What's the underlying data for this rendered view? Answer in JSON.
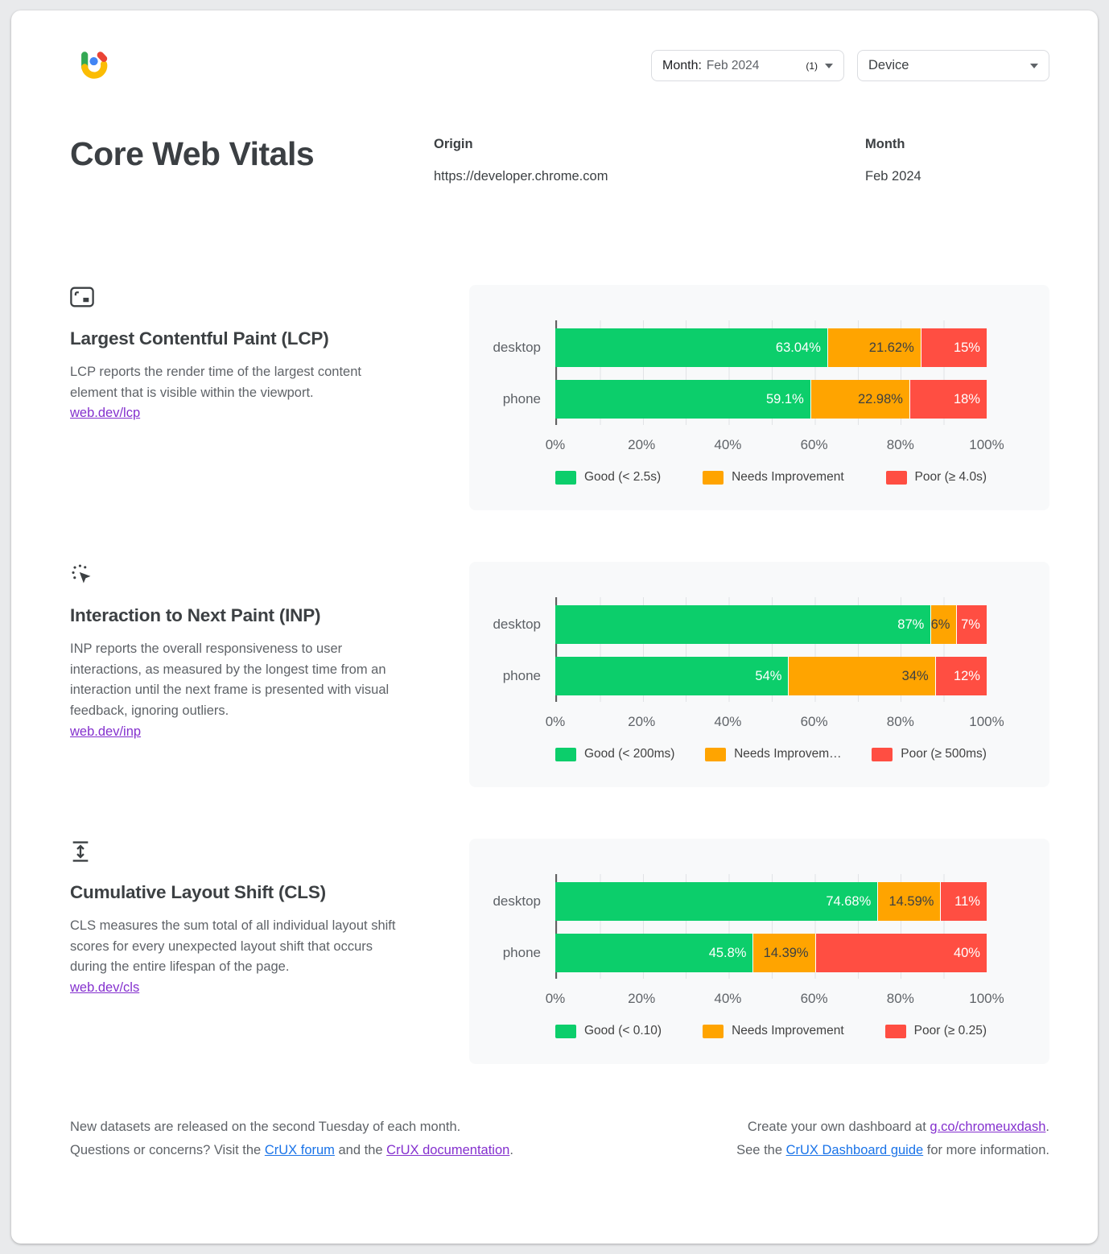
{
  "title": "Core Web Vitals",
  "filters": {
    "month": {
      "label": "Month:",
      "value": "Feb 2024",
      "count": "(1)"
    },
    "device": {
      "label": "Device"
    }
  },
  "origin": {
    "label": "Origin",
    "value": "https://developer.chrome.com"
  },
  "month": {
    "label": "Month",
    "value": "Feb 2024"
  },
  "colors": {
    "good": "#0cce6b",
    "needs_improvement": "#ffa400",
    "poor": "#ff4e42",
    "link_blue": "#1a73e8",
    "link_purple": "#8430ce"
  },
  "sections": [
    {
      "id": "lcp",
      "icon": "fit-screen-icon",
      "title": "Largest Contentful Paint (LCP)",
      "description": "LCP reports the render time of the largest content element that is visible within the viewport.",
      "link": "web.dev/lcp",
      "chart_data": {
        "type": "bar",
        "orientation": "horizontal",
        "stacked": true,
        "grid": true,
        "categories": [
          "desktop",
          "phone"
        ],
        "series": [
          {
            "name": "Good (< 2.5s)",
            "color": "#0cce6b",
            "label_color": "#ffffff",
            "values": [
              63.04,
              59.1
            ],
            "labels": [
              "63.04%",
              "59.1%"
            ]
          },
          {
            "name": "Needs Improvement",
            "color": "#ffa400",
            "label_color": "#3c4043",
            "values": [
              21.62,
              22.98
            ],
            "labels": [
              "21.62%",
              "22.98%"
            ]
          },
          {
            "name": "Poor (≥ 4.0s)",
            "color": "#ff4e42",
            "label_color": "#ffffff",
            "values": [
              15.34,
              17.92
            ],
            "labels": [
              "15%",
              "18%"
            ]
          }
        ],
        "x_ticks": [
          "0%",
          "20%",
          "40%",
          "60%",
          "80%",
          "100%"
        ],
        "xlim": [
          0,
          100
        ],
        "legend": [
          "Good (< 2.5s)",
          "Needs Improvement",
          "Poor (≥ 4.0s)"
        ]
      }
    },
    {
      "id": "inp",
      "icon": "cursor-click-icon",
      "title": "Interaction to Next Paint (INP)",
      "description": "INP reports the overall responsiveness to user interactions, as measured by the longest time from an interaction until the next frame is presented with visual feedback, ignoring outliers.",
      "link": "web.dev/inp",
      "chart_data": {
        "type": "bar",
        "orientation": "horizontal",
        "stacked": true,
        "grid": true,
        "categories": [
          "desktop",
          "phone"
        ],
        "series": [
          {
            "name": "Good (< 200ms)",
            "color": "#0cce6b",
            "label_color": "#ffffff",
            "values": [
              87,
              54
            ],
            "labels": [
              "87%",
              "54%"
            ]
          },
          {
            "name": "Needs Improvement",
            "color": "#ffa400",
            "label_color": "#3c4043",
            "values": [
              6,
              34
            ],
            "labels": [
              "6%",
              "34%"
            ]
          },
          {
            "name": "Poor (≥ 500ms)",
            "color": "#ff4e42",
            "label_color": "#ffffff",
            "values": [
              7,
              12
            ],
            "labels": [
              "7%",
              "12%"
            ]
          }
        ],
        "x_ticks": [
          "0%",
          "20%",
          "40%",
          "60%",
          "80%",
          "100%"
        ],
        "xlim": [
          0,
          100
        ],
        "legend": [
          "Good (< 200ms)",
          "Needs Improvem…",
          "Poor (≥ 500ms)"
        ]
      }
    },
    {
      "id": "cls",
      "icon": "layout-shift-icon",
      "title": "Cumulative Layout Shift (CLS)",
      "description": "CLS measures the sum total of all individual layout shift scores for every unexpected layout shift that occurs during the entire lifespan of the page.",
      "link": "web.dev/cls",
      "chart_data": {
        "type": "bar",
        "orientation": "horizontal",
        "stacked": true,
        "grid": true,
        "categories": [
          "desktop",
          "phone"
        ],
        "series": [
          {
            "name": "Good (< 0.10)",
            "color": "#0cce6b",
            "label_color": "#ffffff",
            "values": [
              74.68,
              45.8
            ],
            "labels": [
              "74.68%",
              "45.8%"
            ]
          },
          {
            "name": "Needs Improvement",
            "color": "#ffa400",
            "label_color": "#3c4043",
            "values": [
              14.59,
              14.39
            ],
            "labels": [
              "14.59%",
              "14.39%"
            ]
          },
          {
            "name": "Poor (≥ 0.25)",
            "color": "#ff4e42",
            "label_color": "#ffffff",
            "values": [
              10.73,
              39.81
            ],
            "labels": [
              "11%",
              "40%"
            ]
          }
        ],
        "x_ticks": [
          "0%",
          "20%",
          "40%",
          "60%",
          "80%",
          "100%"
        ],
        "xlim": [
          0,
          100
        ],
        "legend": [
          "Good (< 0.10)",
          "Needs Improvement",
          "Poor (≥ 0.25)"
        ]
      }
    }
  ],
  "footer": {
    "left": {
      "line1": "New datasets are released on the second Tuesday of each month.",
      "line2_pre": "Questions or concerns? Visit the ",
      "line2_link1": "CrUX forum",
      "line2_mid": " and the ",
      "line2_link2": "CrUX documentation",
      "line2_end": "."
    },
    "right": {
      "line1_pre": "Create your own dashboard at ",
      "line1_link": "g.co/chromeuxdash",
      "line1_end": ".",
      "line2_pre": "See the ",
      "line2_link": "CrUX Dashboard guide",
      "line2_mid": " for more information."
    }
  }
}
